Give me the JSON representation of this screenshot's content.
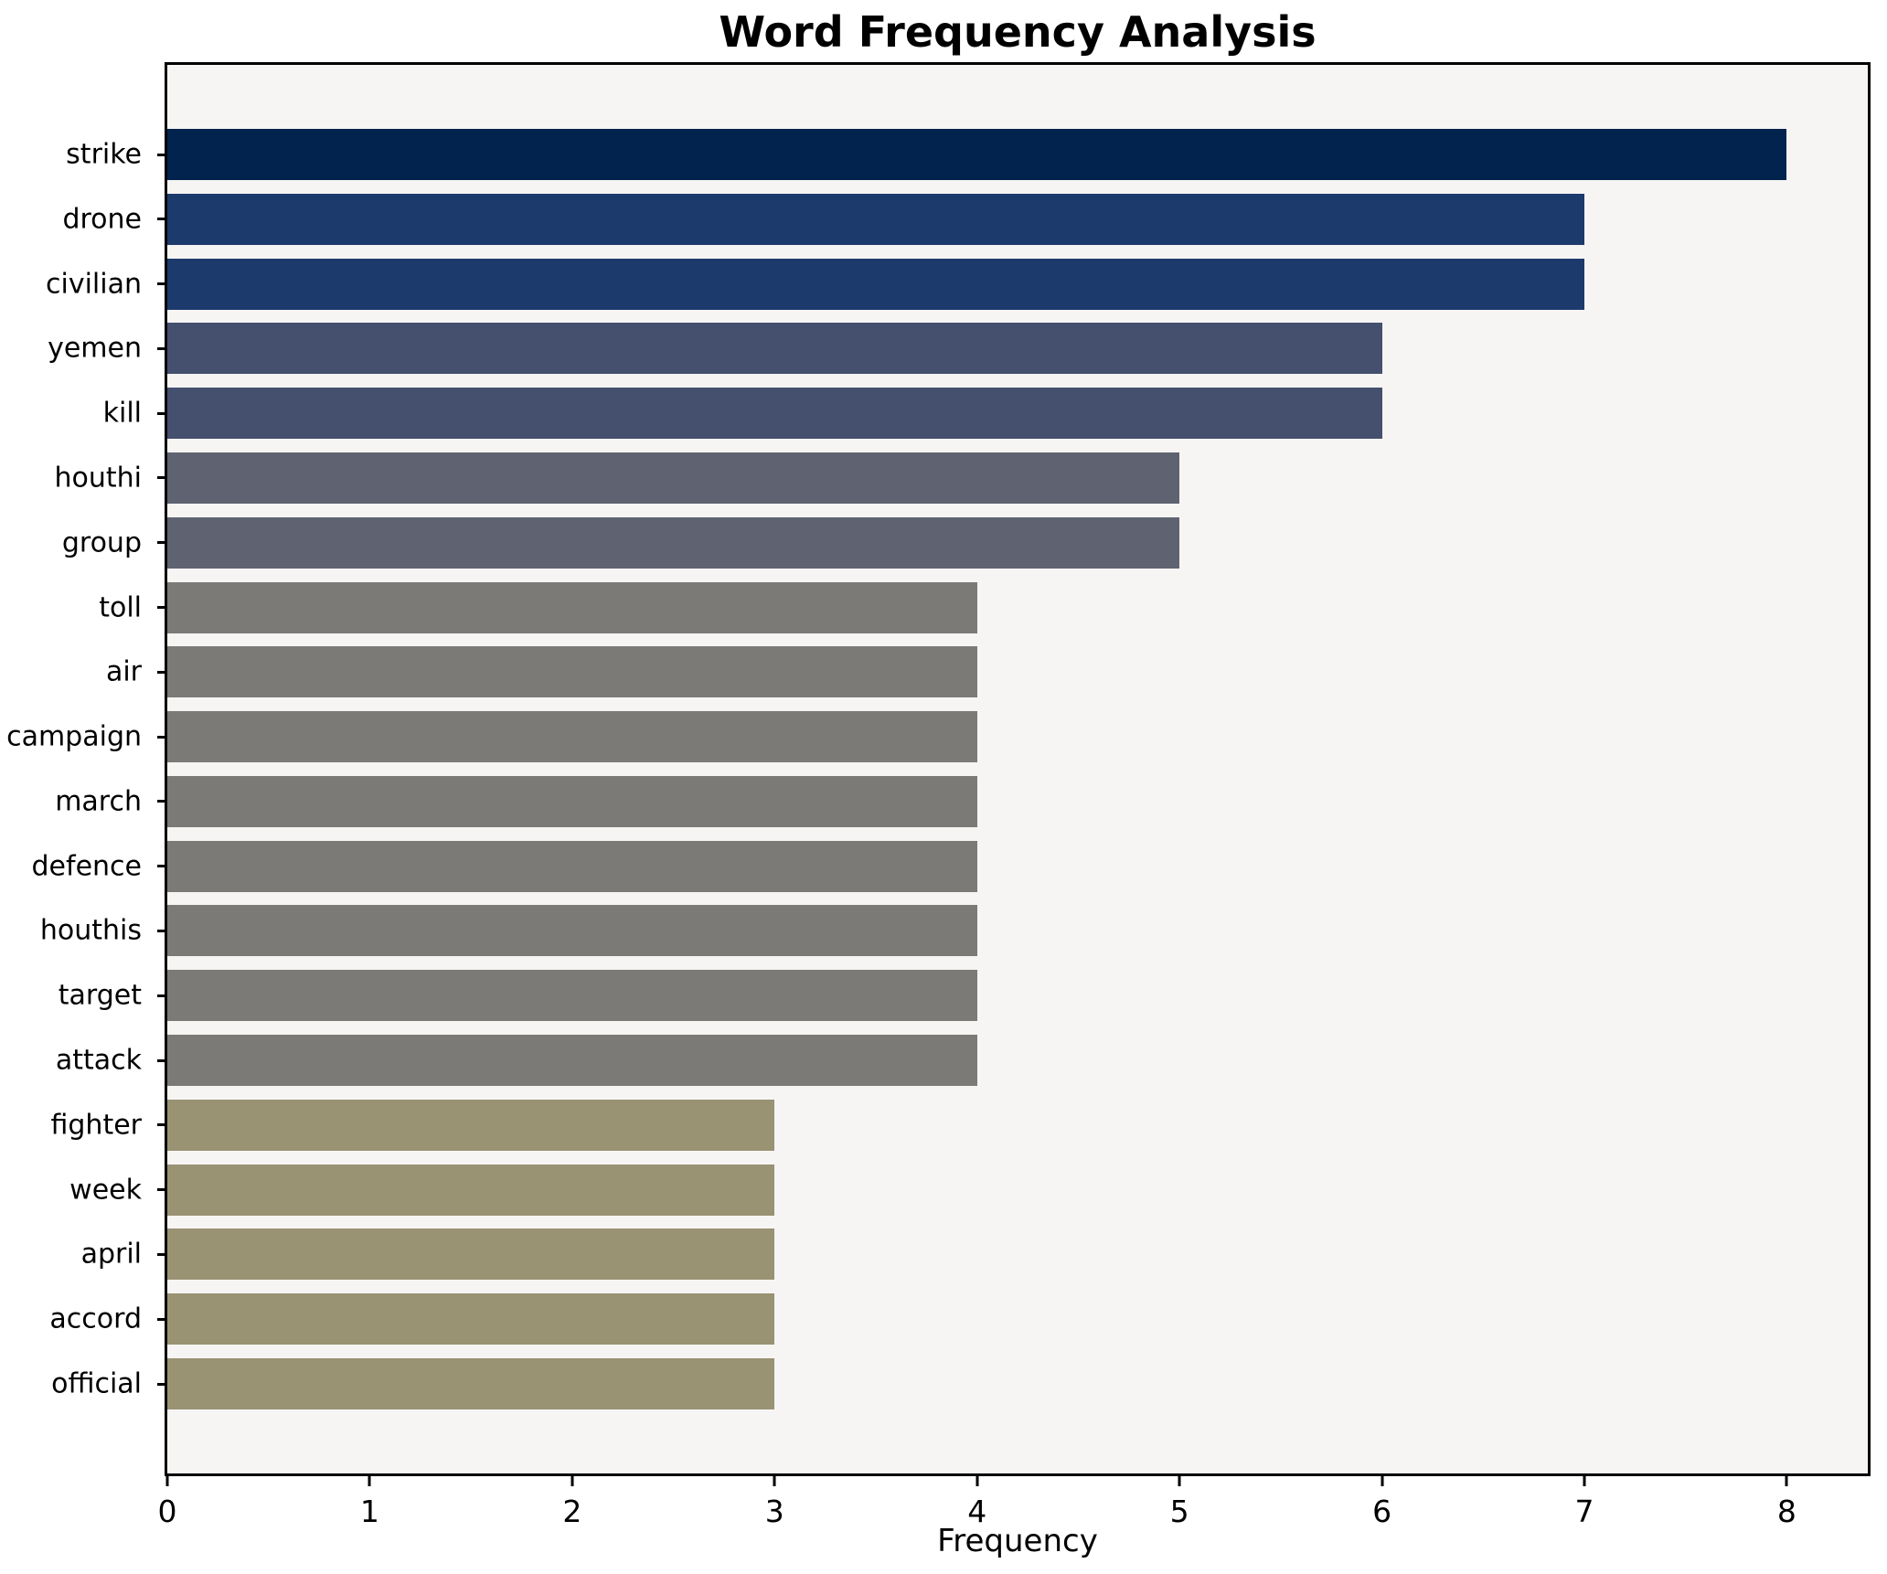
{
  "figure": {
    "background": "#ffffff",
    "frame_color": "#000000"
  },
  "chart_data": {
    "type": "bar",
    "orientation": "horizontal",
    "title": "Word Frequency Analysis",
    "xlabel": "Frequency",
    "ylabel": "",
    "categories": [
      "strike",
      "drone",
      "civilian",
      "yemen",
      "kill",
      "houthi",
      "group",
      "toll",
      "air",
      "campaign",
      "march",
      "defence",
      "houthis",
      "target",
      "attack",
      "fighter",
      "week",
      "april",
      "accord",
      "official"
    ],
    "values": [
      8,
      7,
      7,
      6,
      6,
      5,
      5,
      4,
      4,
      4,
      4,
      4,
      4,
      4,
      4,
      3,
      3,
      3,
      3,
      3
    ],
    "bar_colors": [
      "#02234e",
      "#1d3a6c",
      "#1d3a6c",
      "#45506f",
      "#45506f",
      "#5f6371",
      "#5f6371",
      "#7b7a76",
      "#7b7a76",
      "#7b7a76",
      "#7b7a76",
      "#7b7a76",
      "#7b7a76",
      "#7b7a76",
      "#7b7a76",
      "#999273",
      "#999273",
      "#999273",
      "#999273",
      "#999273"
    ],
    "xlim": [
      0,
      8.4
    ],
    "xticks": [
      0,
      1,
      2,
      3,
      4,
      5,
      6,
      7,
      8
    ],
    "plot_background": "#f7f5f4",
    "grid": false,
    "legend_position": "none"
  }
}
